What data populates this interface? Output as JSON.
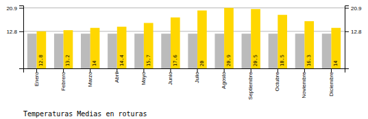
{
  "chart_data": {
    "type": "bar",
    "title": "Temperaturas Medias en roturas",
    "categories": [
      "Enero",
      "Febrero",
      "Marzo",
      "Abril",
      "Mayo",
      "Junio",
      "Julio",
      "Agosto",
      "Septiembre",
      "Octubre",
      "Noviembre",
      "Diciembre"
    ],
    "series": [
      {
        "color": "#BBBBBB",
        "values": [
          12.0,
          12.0,
          12.0,
          12.0,
          12.0,
          12.0,
          12.0,
          12.0,
          12.0,
          12.0,
          12.0,
          12.0
        ]
      },
      {
        "color": "#FFD700",
        "data_labels": true,
        "values": [
          12.8,
          13.2,
          14.0,
          14.4,
          15.7,
          17.6,
          20.0,
          20.9,
          20.5,
          18.5,
          16.3,
          14.0
        ]
      }
    ],
    "ylim": [
      0,
      21.736
    ],
    "yticks": [
      12.8,
      20.9
    ],
    "y2lim": [
      0,
      21.736
    ],
    "y2ticks": [
      12.8,
      20.9
    ],
    "grid": true
  }
}
